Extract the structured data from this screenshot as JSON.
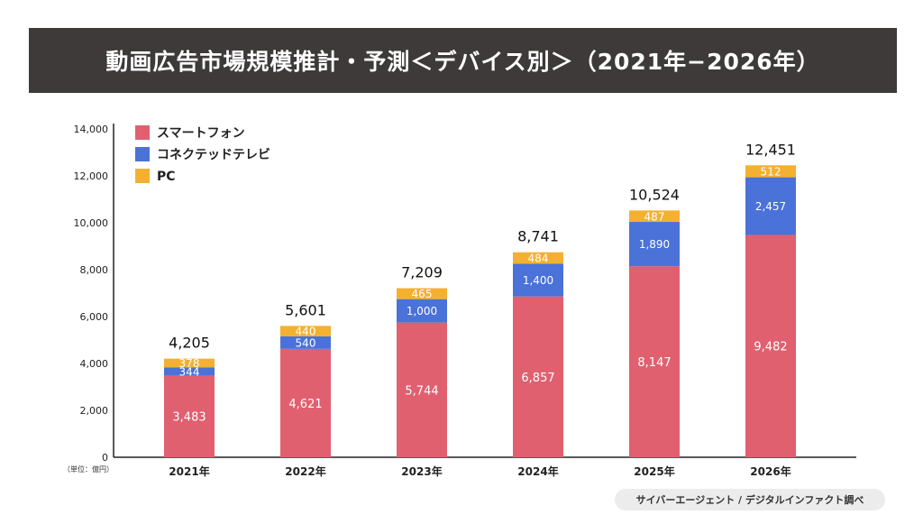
{
  "title": "動画広告市場規模推計・予測＜デバイス別＞（2021年−2026年）",
  "unit_label": "（単位：億円）",
  "source": "サイバーエージェント / デジタルインファクト調べ",
  "colors": {
    "smartphone": "#e06070",
    "connected_tv": "#4a72d8",
    "pc": "#f4b030",
    "title_bg": "#3d3a39"
  },
  "chart_data": {
    "type": "bar",
    "stacked": true,
    "title": "動画広告市場規模推計・予測＜デバイス別＞（2021年−2026年）",
    "xlabel": "",
    "ylabel": "（単位：億円）",
    "ylim": [
      0,
      14000
    ],
    "yticks": [
      0,
      2000,
      4000,
      6000,
      8000,
      10000,
      12000,
      14000
    ],
    "ytick_labels": [
      "0",
      "2,000",
      "4,000",
      "6,000",
      "8,000",
      "10,000",
      "12,000",
      "14,000"
    ],
    "grid": false,
    "legend_position": "top-left",
    "categories": [
      "2021年",
      "2022年",
      "2023年",
      "2024年",
      "2025年",
      "2026年"
    ],
    "series": [
      {
        "name": "スマートフォン",
        "key": "smartphone",
        "values": [
          3483,
          4621,
          5744,
          6857,
          8147,
          9482
        ],
        "labels": [
          "3,483",
          "4,621",
          "5,744",
          "6,857",
          "8,147",
          "9,482"
        ]
      },
      {
        "name": "コネクテッドテレビ",
        "key": "connected_tv",
        "values": [
          344,
          540,
          1000,
          1400,
          1890,
          2457
        ],
        "labels": [
          "344",
          "540",
          "1,000",
          "1,400",
          "1,890",
          "2,457"
        ]
      },
      {
        "name": "PC",
        "key": "pc",
        "values": [
          378,
          440,
          465,
          484,
          487,
          512
        ],
        "labels": [
          "378",
          "440",
          "465",
          "484",
          "487",
          "512"
        ]
      }
    ],
    "totals": [
      4205,
      5601,
      7209,
      8741,
      10524,
      12451
    ],
    "total_labels": [
      "4,205",
      "5,601",
      "7,209",
      "8,741",
      "10,524",
      "12,451"
    ]
  }
}
